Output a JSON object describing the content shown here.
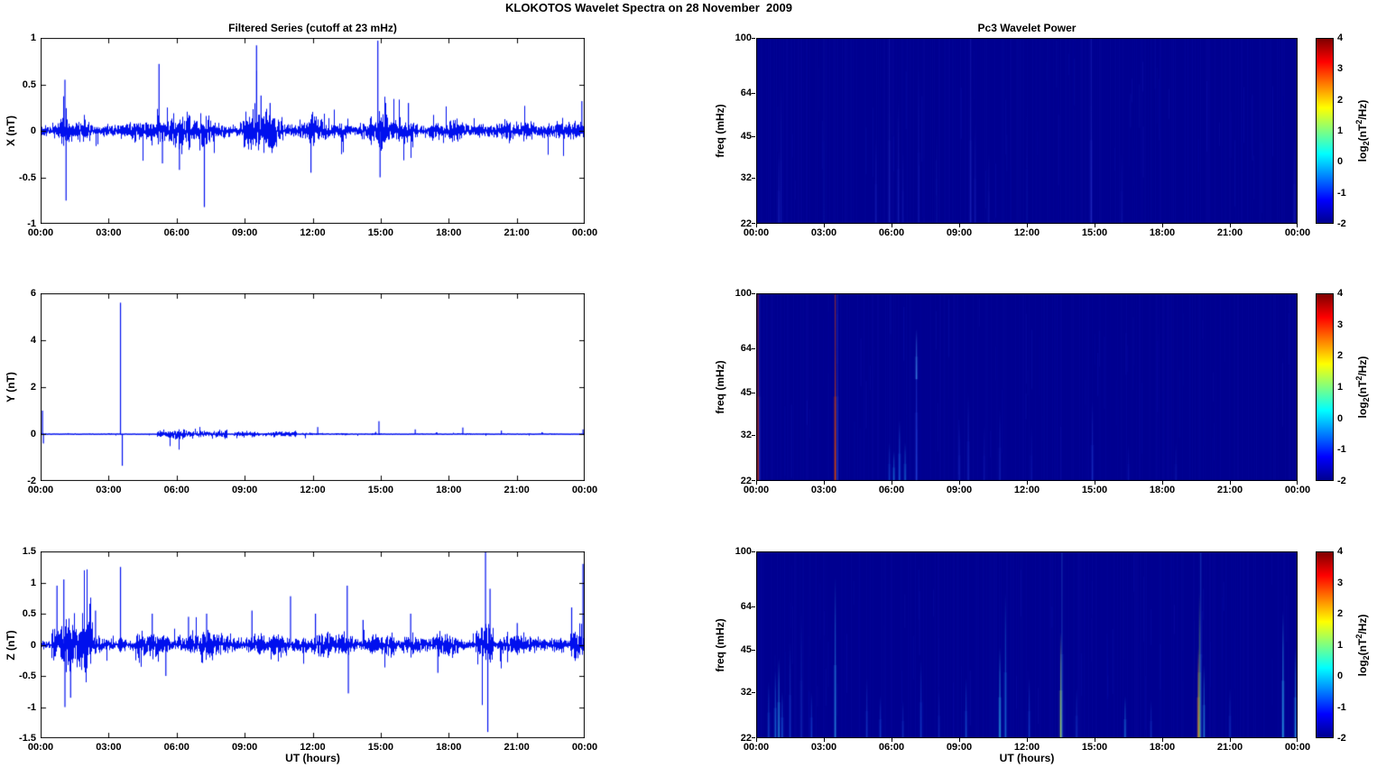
{
  "figure_title": "KLOKOTOS Wavelet Spectra on 28 November  2009",
  "panels_header": {
    "left_title": "Filtered Series (cutoff at 23 mHz)",
    "right_title": "Pc3 Wavelet Power"
  },
  "x_axis": {
    "label": "UT (hours)",
    "ticks": [
      "00:00",
      "03:00",
      "06:00",
      "09:00",
      "12:00",
      "15:00",
      "18:00",
      "21:00",
      "00:00"
    ],
    "range_hours": [
      0,
      24
    ]
  },
  "colorbar": {
    "label_parts": {
      "prefix": "log",
      "sub": "2",
      "mid": "(nT",
      "sup": "2",
      "suffix": "/Hz)"
    },
    "ticks": [
      4,
      3,
      2,
      1,
      0,
      -1,
      -2
    ],
    "min": -2,
    "max": 4,
    "colormap": "jet",
    "gradient": [
      "#7f0000",
      "#ff0000",
      "#ffff00",
      "#00ffff",
      "#0000ff",
      "#00008f"
    ],
    "gradient_stops": [
      0,
      12.5,
      37.5,
      62.5,
      87.5,
      100
    ]
  },
  "series_color": "#0010ee",
  "chart_data": [
    {
      "panel": "p0",
      "type": "line",
      "title": "Filtered Series (cutoff at 23 mHz)",
      "ylabel": "X (nT)",
      "ylim": [
        -1,
        1
      ],
      "yticks": [
        -1,
        -0.5,
        0,
        0.5,
        1
      ],
      "xlim_hours": [
        0,
        24
      ],
      "noise_base": 0.045,
      "activity": [
        [
          0.85,
          1.25,
          1.9
        ],
        [
          5.1,
          6.6,
          2.3
        ],
        [
          7.0,
          7.4,
          1.6
        ],
        [
          8.9,
          10.7,
          2.1
        ],
        [
          11.4,
          12.2,
          1.5
        ],
        [
          14.5,
          15.3,
          2.1
        ],
        [
          15.8,
          16.6,
          1.6
        ],
        [
          21.5,
          22.2,
          1.3
        ]
      ],
      "spikes": [
        [
          1.05,
          0.55
        ],
        [
          1.1,
          -0.75
        ],
        [
          5.2,
          0.72
        ],
        [
          5.35,
          -0.35
        ],
        [
          6.1,
          -0.42
        ],
        [
          7.2,
          -0.82
        ],
        [
          9.5,
          0.92
        ],
        [
          9.7,
          0.38
        ],
        [
          10.1,
          0.3
        ],
        [
          11.9,
          -0.45
        ],
        [
          14.85,
          0.97
        ],
        [
          14.95,
          -0.5
        ],
        [
          16.2,
          0.3
        ],
        [
          23.85,
          0.32
        ]
      ]
    },
    {
      "panel": "p1",
      "type": "line",
      "ylabel": "Y (nT)",
      "ylim": [
        -2,
        6
      ],
      "yticks": [
        -2,
        0,
        2,
        4,
        6
      ],
      "xlim_hours": [
        0,
        24
      ],
      "noise_base": 0.012,
      "activity": [
        [
          5.1,
          8.2,
          7
        ],
        [
          8.5,
          11.3,
          5
        ],
        [
          11.5,
          13.5,
          2
        ],
        [
          14.5,
          15.2,
          2
        ],
        [
          18.0,
          19.0,
          1.5
        ]
      ],
      "spikes": [
        [
          0.06,
          1.0
        ],
        [
          0.1,
          -0.4
        ],
        [
          3.5,
          5.6
        ],
        [
          3.58,
          -1.35
        ],
        [
          12.2,
          0.3
        ],
        [
          14.9,
          0.55
        ],
        [
          16.5,
          0.2
        ],
        [
          18.6,
          0.28
        ],
        [
          20.3,
          0.15
        ],
        [
          23.9,
          0.2
        ]
      ]
    },
    {
      "panel": "p2",
      "type": "line",
      "ylabel": "Z (nT)",
      "ylim": [
        -1.5,
        1.5
      ],
      "yticks": [
        -1.5,
        -1,
        -0.5,
        0,
        0.5,
        1,
        1.5
      ],
      "xlim_hours": [
        0,
        24
      ],
      "noise_base": 0.035,
      "activity": [
        [
          0.45,
          2.3,
          6
        ],
        [
          2.3,
          3.2,
          2
        ],
        [
          3.4,
          3.75,
          3
        ],
        [
          4.2,
          8.2,
          2.6
        ],
        [
          8.2,
          12.4,
          2.2
        ],
        [
          12.4,
          15.6,
          2.3
        ],
        [
          15.9,
          18.4,
          2.4
        ],
        [
          19.15,
          19.95,
          5.5
        ],
        [
          20.2,
          23.1,
          1.9
        ],
        [
          23.3,
          24,
          2.6
        ]
      ],
      "spikes": [
        [
          0.7,
          0.95
        ],
        [
          1.0,
          1.05
        ],
        [
          1.05,
          -1.0
        ],
        [
          1.3,
          -0.85
        ],
        [
          2.4,
          0.55
        ],
        [
          3.5,
          1.25
        ],
        [
          4.9,
          0.5
        ],
        [
          5.5,
          -0.5
        ],
        [
          6.5,
          0.45
        ],
        [
          7.3,
          0.5
        ],
        [
          9.3,
          0.55
        ],
        [
          11.0,
          0.78
        ],
        [
          12.1,
          0.5
        ],
        [
          13.5,
          0.95
        ],
        [
          13.55,
          -0.78
        ],
        [
          14.2,
          0.4
        ],
        [
          16.3,
          0.5
        ],
        [
          17.5,
          -0.45
        ],
        [
          19.6,
          1.5
        ],
        [
          19.7,
          -1.4
        ],
        [
          19.8,
          0.9
        ],
        [
          21.0,
          0.35
        ],
        [
          23.4,
          0.6
        ],
        [
          23.9,
          1.3
        ]
      ]
    },
    {
      "panel": "p3",
      "type": "heatmap",
      "title": "Pc3 Wavelet Power",
      "ylabel": "freq (mHz)",
      "yticks": [
        22,
        32,
        45,
        64,
        100
      ],
      "yscale": "log",
      "flim": [
        22,
        100
      ],
      "background": "#000090",
      "value_range": [
        -2,
        4
      ],
      "events": [
        [
          1.0,
          "#2233cc",
          0.45,
          40
        ],
        [
          1.1,
          "#1a28c0",
          0.35,
          70
        ],
        [
          3.0,
          "#1020b0",
          0.3,
          100
        ],
        [
          5.3,
          "#2233cc",
          0.4,
          45
        ],
        [
          5.9,
          "#2a3ad0",
          0.45,
          100
        ],
        [
          6.3,
          "#2233cc",
          0.4,
          60
        ],
        [
          6.5,
          "#1a28c0",
          0.35,
          40
        ],
        [
          7.2,
          "#1a28c0",
          0.35,
          80
        ],
        [
          8.0,
          "#1020b0",
          0.3,
          50
        ],
        [
          9.5,
          "#2a3ad0",
          0.45,
          100
        ],
        [
          9.7,
          "#2233cc",
          0.35,
          50
        ],
        [
          10.3,
          "#1a28c0",
          0.3,
          40
        ],
        [
          12.0,
          "#1020b0",
          0.3,
          60
        ],
        [
          14.85,
          "#3344dd",
          0.5,
          100
        ],
        [
          16.2,
          "#1a28c0",
          0.3,
          40
        ],
        [
          23.85,
          "#2233cc",
          0.35,
          45
        ]
      ]
    },
    {
      "panel": "p4",
      "type": "heatmap",
      "ylabel": "freq (mHz)",
      "yticks": [
        22,
        32,
        45,
        64,
        100
      ],
      "yscale": "log",
      "flim": [
        22,
        100
      ],
      "background": "#000090",
      "value_range": [
        -2,
        4
      ],
      "events": [
        [
          0.08,
          "#cc3300",
          0.9,
          100
        ],
        [
          0.15,
          "#2244dd",
          0.4,
          100
        ],
        [
          3.5,
          "#dd4400",
          0.95,
          100
        ],
        [
          3.6,
          "#3366ee",
          0.4,
          100
        ],
        [
          5.9,
          "#1a66ee",
          0.45,
          30
        ],
        [
          6.1,
          "#22aaff",
          0.5,
          28
        ],
        [
          6.35,
          "#2288ff",
          0.55,
          36
        ],
        [
          6.6,
          "#22aaff",
          0.45,
          30
        ],
        [
          7.1,
          "#3366ff",
          0.5,
          75
        ],
        [
          7.1,
          "#55bbff",
          0.5,
          75,
          50
        ],
        [
          9.0,
          "#2244dd",
          0.35,
          35
        ],
        [
          9.4,
          "#2244dd",
          0.4,
          45
        ],
        [
          10.1,
          "#1a33cc",
          0.3,
          35
        ],
        [
          10.8,
          "#2244dd",
          0.35,
          40
        ],
        [
          12.2,
          "#1a33cc",
          0.3,
          35
        ],
        [
          14.9,
          "#2952e6",
          0.45,
          42
        ],
        [
          16.5,
          "#1a33cc",
          0.3,
          30
        ],
        [
          18.6,
          "#1a33cc",
          0.3,
          30
        ]
      ]
    },
    {
      "panel": "p5",
      "type": "heatmap",
      "ylabel": "freq (mHz)",
      "yticks": [
        22,
        32,
        45,
        64,
        100
      ],
      "yscale": "log",
      "flim": [
        22,
        100
      ],
      "background": "#000090",
      "value_range": [
        -2,
        4
      ],
      "events": [
        [
          0.55,
          "#2288ff",
          0.4,
          35
        ],
        [
          0.85,
          "#22aaff",
          0.5,
          38
        ],
        [
          1.0,
          "#33ccff",
          0.6,
          42
        ],
        [
          1.15,
          "#2288ff",
          0.5,
          32
        ],
        [
          1.5,
          "#2266ee",
          0.4,
          48
        ],
        [
          2.0,
          "#2255dd",
          0.35,
          62
        ],
        [
          2.45,
          "#2277ff",
          0.4,
          32
        ],
        [
          3.5,
          "#33bbff",
          0.6,
          82
        ],
        [
          4.9,
          "#2266ee",
          0.4,
          36
        ],
        [
          5.5,
          "#2277ff",
          0.4,
          31
        ],
        [
          6.5,
          "#2266ee",
          0.35,
          30
        ],
        [
          7.3,
          "#2277ff",
          0.4,
          42
        ],
        [
          8.1,
          "#2255dd",
          0.3,
          33
        ],
        [
          9.3,
          "#2288ff",
          0.45,
          36
        ],
        [
          10.8,
          "#33ddff",
          0.65,
          46
        ],
        [
          11.05,
          "#22aaff",
          0.5,
          72
        ],
        [
          12.1,
          "#2277ff",
          0.4,
          36
        ],
        [
          13.5,
          "#bbee55",
          0.85,
          52
        ],
        [
          13.55,
          "#44aaff",
          0.4,
          100
        ],
        [
          14.2,
          "#2266ee",
          0.35,
          33
        ],
        [
          16.35,
          "#22aaff",
          0.5,
          31
        ],
        [
          17.5,
          "#2266ee",
          0.35,
          30
        ],
        [
          19.6,
          "#ff9922",
          0.85,
          46
        ],
        [
          19.65,
          "#88dd44",
          0.6,
          72
        ],
        [
          19.7,
          "#44aaff",
          0.4,
          100
        ],
        [
          19.85,
          "#33ccff",
          0.5,
          40
        ],
        [
          21.0,
          "#2266ee",
          0.35,
          33
        ],
        [
          23.35,
          "#33ccff",
          0.7,
          62
        ],
        [
          23.9,
          "#33ccff",
          0.6,
          46
        ]
      ]
    }
  ]
}
